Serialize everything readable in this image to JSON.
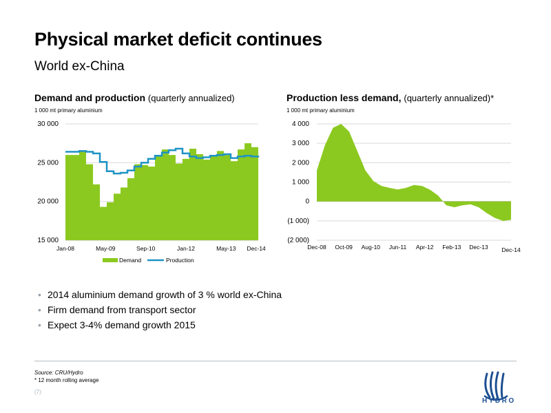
{
  "page": {
    "title": "Physical market deficit continues",
    "subtitle": "World ex-China",
    "bullets": [
      "2014 aluminium demand growth of  3 % world ex-China",
      "Firm demand from transport sector",
      "Expect 3-4% demand growth 2015"
    ],
    "source": "Source: CRU/Hydro",
    "footnote": "* 12 month rolling average",
    "page_number": "(7)",
    "logo_text": "HYDRO",
    "bullet_glyph": "•"
  },
  "colors": {
    "demand": "#8cc920",
    "production": "#1e93c5",
    "grid": "#d9d9d9",
    "logo": "#1d4f91"
  },
  "charts": {
    "left": {
      "title": "Demand and production",
      "title_note": "(quarterly annualized)",
      "unit": "1 000 mt primary aluminium"
    },
    "right": {
      "title": "Production less demand,",
      "title_note": "(quarterly annualized)*",
      "unit": "1 000 mt primary aluminium"
    }
  },
  "chart_data": [
    {
      "type": "area",
      "title": "Demand and production (quarterly annualized)",
      "ylabel": "1 000 mt primary aluminium",
      "ylim": [
        15000,
        30000
      ],
      "yticks": [
        15000,
        20000,
        25000,
        30000
      ],
      "ytick_labels": [
        "15 000",
        "20 000",
        "25 000",
        "30 000"
      ],
      "xtick_labels": [
        "Jan-08",
        "May-09",
        "Sep-10",
        "Jan-12",
        "May-13",
        "Dec-14"
      ],
      "xtick_index": [
        0,
        8,
        16,
        24,
        32,
        38
      ],
      "grid": true,
      "legend": "bottom",
      "series": [
        {
          "name": "Demand",
          "style": "area",
          "values": [
            26000,
            26000,
            26500,
            24800,
            22200,
            19300,
            19900,
            21000,
            21800,
            23000,
            24800,
            24700,
            24500,
            25800,
            26700,
            26000,
            24900,
            25500,
            26800,
            26100,
            25400,
            26000,
            26500,
            26000,
            25200,
            26700,
            27500,
            27000,
            26000
          ]
        },
        {
          "name": "Production",
          "style": "line",
          "values": [
            26400,
            26400,
            26500,
            26400,
            26200,
            25100,
            23900,
            23600,
            23700,
            24000,
            24500,
            25000,
            25500,
            25900,
            26300,
            26600,
            26800,
            26200,
            25800,
            25600,
            25700,
            25900,
            26000,
            26100,
            25600,
            25800,
            25900,
            25800,
            25900
          ]
        }
      ],
      "x_index": [
        0,
        1.37,
        2.74,
        4.11,
        5.49,
        6.86,
        8.23,
        9.6,
        10.97,
        12.34,
        13.71,
        15.09,
        16.46,
        17.83,
        19.2,
        20.57,
        21.94,
        23.31,
        24.69,
        26.06,
        27.43,
        28.8,
        30.17,
        31.54,
        32.91,
        34.29,
        35.66,
        37.03,
        38.4
      ]
    },
    {
      "type": "area",
      "title": "Production less demand, (quarterly annualized)*",
      "ylabel": "1 000 mt primary aluminium",
      "ylim": [
        -2000,
        4000
      ],
      "yticks": [
        -2000,
        -1000,
        0,
        1000,
        2000,
        3000,
        4000
      ],
      "ytick_labels": [
        "(2 000)",
        "(1 000)",
        "0",
        "1 000",
        "2 000",
        "3 000",
        "4 000"
      ],
      "xtick_labels": [
        "Dec-08",
        "Oct-09",
        "Aug-10",
        "Jun-11",
        "Apr-12",
        "Feb-13",
        "Dec-13",
        "Dec-14"
      ],
      "xtick_index": [
        0,
        10,
        20,
        30,
        40,
        50,
        60,
        72
      ],
      "grid": true,
      "series": [
        {
          "name": "Production less demand",
          "style": "area",
          "x": [
            0,
            3,
            6,
            9,
            12,
            15,
            18,
            21,
            24,
            27,
            30,
            33,
            36,
            39,
            42,
            45,
            48,
            51,
            54,
            57,
            60,
            63,
            66,
            69,
            72
          ],
          "values": [
            1600,
            2900,
            3800,
            4000,
            3600,
            2600,
            1600,
            1050,
            800,
            700,
            620,
            700,
            850,
            800,
            600,
            300,
            -200,
            -300,
            -200,
            -150,
            -300,
            -600,
            -850,
            -1000,
            -950
          ]
        }
      ]
    }
  ]
}
